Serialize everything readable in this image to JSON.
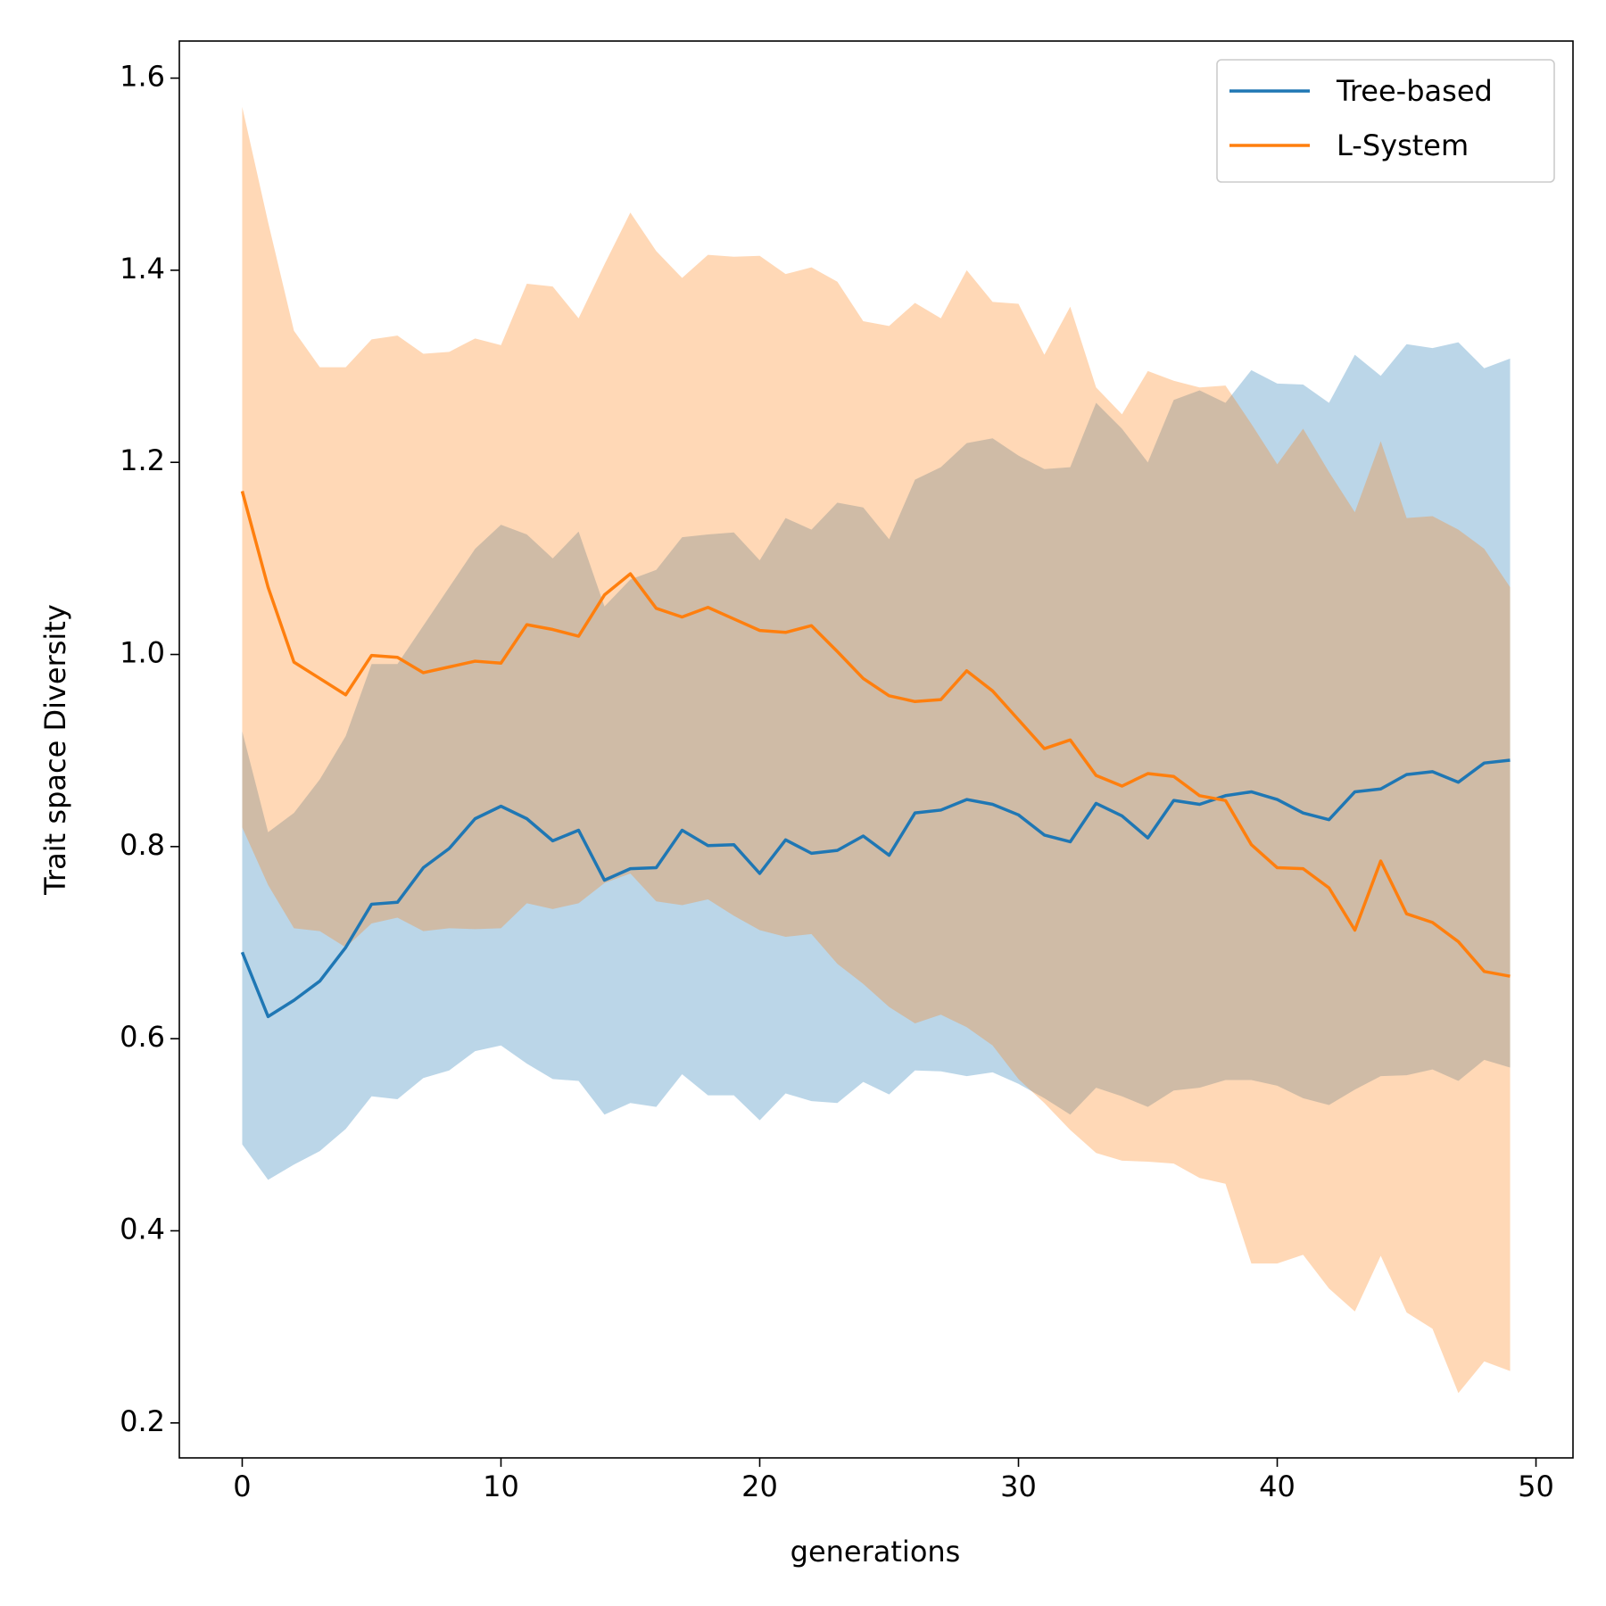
{
  "chart_data": {
    "type": "line",
    "xlabel": "generations",
    "ylabel": "Trait space Diversity",
    "x": [
      0,
      1,
      2,
      3,
      4,
      5,
      6,
      7,
      8,
      9,
      10,
      11,
      12,
      13,
      14,
      15,
      16,
      17,
      18,
      19,
      20,
      21,
      22,
      23,
      24,
      25,
      26,
      27,
      28,
      29,
      30,
      31,
      32,
      33,
      34,
      35,
      36,
      37,
      38,
      39,
      40,
      41,
      42,
      43,
      44,
      45,
      46,
      47,
      48,
      49
    ],
    "xlim": [
      -2.43,
      51.43
    ],
    "xticks": [
      0,
      10,
      20,
      30,
      40,
      50
    ],
    "ylim": [
      0.1636,
      1.6386
    ],
    "yticks": [
      {
        "value": 0.2,
        "label": "0.2"
      },
      {
        "value": 0.4,
        "label": "0.4"
      },
      {
        "value": 0.6,
        "label": "0.6"
      },
      {
        "value": 0.8,
        "label": "0.8"
      },
      {
        "value": 1.0,
        "label": "1.0"
      },
      {
        "value": 1.2,
        "label": "1.2"
      },
      {
        "value": 1.4,
        "label": "1.4"
      },
      {
        "value": 1.6,
        "label": "1.6"
      }
    ],
    "legend": "upper right",
    "band_opacity": 0.3,
    "series": [
      {
        "name": "Tree-based",
        "color": "#1f77b4",
        "values": [
          0.69,
          0.623,
          0.64,
          0.66,
          0.695,
          0.74,
          0.742,
          0.778,
          0.798,
          0.829,
          0.842,
          0.829,
          0.806,
          0.817,
          0.765,
          0.777,
          0.778,
          0.817,
          0.801,
          0.802,
          0.772,
          0.807,
          0.793,
          0.796,
          0.811,
          0.791,
          0.835,
          0.838,
          0.849,
          0.844,
          0.833,
          0.812,
          0.805,
          0.845,
          0.832,
          0.809,
          0.848,
          0.844,
          0.853,
          0.857,
          0.849,
          0.835,
          0.828,
          0.857,
          0.86,
          0.875,
          0.878,
          0.867,
          0.887,
          0.89
        ],
        "lower": [
          0.49,
          0.453,
          0.469,
          0.483,
          0.506,
          0.54,
          0.537,
          0.559,
          0.567,
          0.587,
          0.593,
          0.574,
          0.558,
          0.556,
          0.521,
          0.533,
          0.529,
          0.563,
          0.541,
          0.541,
          0.515,
          0.543,
          0.535,
          0.533,
          0.555,
          0.542,
          0.567,
          0.566,
          0.561,
          0.565,
          0.553,
          0.538,
          0.521,
          0.549,
          0.54,
          0.529,
          0.546,
          0.549,
          0.557,
          0.557,
          0.551,
          0.538,
          0.531,
          0.547,
          0.561,
          0.562,
          0.568,
          0.556,
          0.578,
          0.57
        ],
        "upper": [
          0.92,
          0.815,
          0.835,
          0.87,
          0.915,
          0.99,
          0.99,
          1.03,
          1.07,
          1.11,
          1.135,
          1.125,
          1.1,
          1.128,
          1.05,
          1.078,
          1.088,
          1.122,
          1.125,
          1.127,
          1.098,
          1.142,
          1.13,
          1.158,
          1.153,
          1.12,
          1.182,
          1.195,
          1.22,
          1.225,
          1.207,
          1.193,
          1.195,
          1.262,
          1.235,
          1.2,
          1.265,
          1.275,
          1.262,
          1.296,
          1.282,
          1.281,
          1.262,
          1.312,
          1.29,
          1.323,
          1.319,
          1.325,
          1.298,
          1.308
        ]
      },
      {
        "name": "L-System",
        "color": "#ff7f0e",
        "values": [
          1.17,
          1.07,
          0.992,
          0.975,
          0.958,
          0.999,
          0.997,
          0.981,
          0.987,
          0.993,
          0.991,
          1.031,
          1.026,
          1.019,
          1.062,
          1.084,
          1.048,
          1.039,
          1.049,
          1.037,
          1.025,
          1.023,
          1.03,
          1.003,
          0.975,
          0.957,
          0.951,
          0.953,
          0.983,
          0.962,
          0.932,
          0.902,
          0.911,
          0.874,
          0.863,
          0.876,
          0.873,
          0.853,
          0.848,
          0.802,
          0.778,
          0.777,
          0.757,
          0.713,
          0.785,
          0.73,
          0.721,
          0.701,
          0.67,
          0.665
        ],
        "lower": [
          0.82,
          0.76,
          0.715,
          0.712,
          0.695,
          0.72,
          0.726,
          0.712,
          0.715,
          0.714,
          0.715,
          0.741,
          0.735,
          0.741,
          0.762,
          0.772,
          0.743,
          0.739,
          0.745,
          0.728,
          0.713,
          0.706,
          0.709,
          0.678,
          0.657,
          0.633,
          0.616,
          0.625,
          0.612,
          0.593,
          0.558,
          0.533,
          0.505,
          0.481,
          0.473,
          0.472,
          0.47,
          0.455,
          0.449,
          0.366,
          0.366,
          0.375,
          0.34,
          0.316,
          0.374,
          0.315,
          0.298,
          0.231,
          0.264,
          0.254
        ],
        "upper": [
          1.57,
          1.45,
          1.337,
          1.299,
          1.299,
          1.328,
          1.332,
          1.313,
          1.315,
          1.329,
          1.322,
          1.386,
          1.383,
          1.35,
          1.406,
          1.46,
          1.42,
          1.392,
          1.416,
          1.414,
          1.415,
          1.396,
          1.403,
          1.388,
          1.347,
          1.342,
          1.366,
          1.35,
          1.4,
          1.367,
          1.365,
          1.312,
          1.362,
          1.278,
          1.25,
          1.295,
          1.285,
          1.278,
          1.28,
          1.24,
          1.198,
          1.235,
          1.19,
          1.148,
          1.222,
          1.142,
          1.144,
          1.13,
          1.11,
          1.07
        ]
      }
    ]
  }
}
